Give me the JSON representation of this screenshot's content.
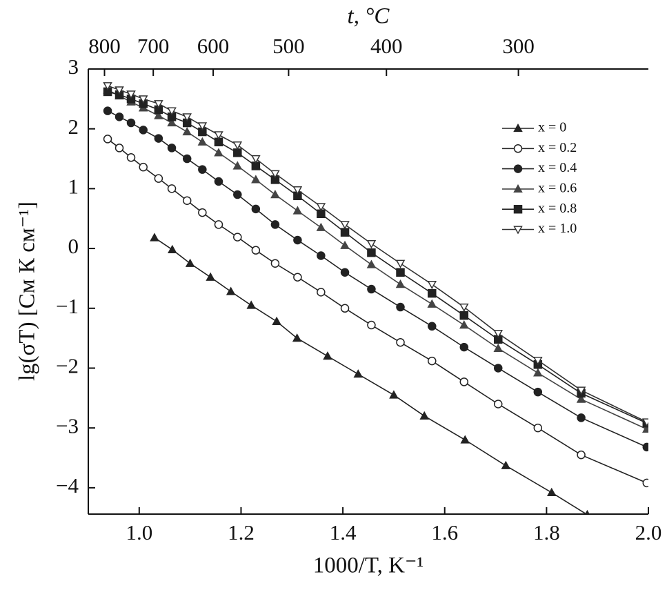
{
  "chart_data": {
    "type": "line",
    "xlabel": "1000/T, K⁻¹",
    "ylabel": "lg(σT) [См К см⁻¹]",
    "x2label": "t, °C",
    "xlim": [
      0.9,
      2.0
    ],
    "xticks": [
      {
        "value": 1.0,
        "label": "1.0"
      },
      1.2,
      1.4,
      1.6,
      1.8,
      {
        "value": 2.0,
        "label": "2.0"
      }
    ],
    "ylim": [
      -4.44,
      3
    ],
    "yticks": [
      3,
      2,
      1,
      0,
      {
        "value": -1,
        "label": "−1"
      },
      {
        "value": -2,
        "label": "−2"
      },
      {
        "value": -3,
        "label": "−3"
      },
      {
        "value": -4,
        "label": "−4"
      }
    ],
    "x2ticks": [
      800,
      700,
      600,
      500,
      400,
      300
    ],
    "grid": false,
    "legend": "upper right",
    "x": [
      0.938,
      0.961,
      0.984,
      1.008,
      1.038,
      1.064,
      1.094,
      1.124,
      1.156,
      1.193,
      1.229,
      1.267,
      1.311,
      1.357,
      1.404,
      1.456,
      1.513,
      1.575,
      1.638,
      1.705,
      1.783,
      1.868,
      1.997
    ],
    "series": [
      {
        "name": "x = 0",
        "color": "#222",
        "marker": "triangle",
        "x": [
          1.03,
          1.065,
          1.1,
          1.14,
          1.18,
          1.22,
          1.27,
          1.31,
          1.37,
          1.43,
          1.5,
          1.56,
          1.64,
          1.72,
          1.81,
          1.88
        ],
        "values": [
          0.18,
          -0.02,
          -0.25,
          -0.48,
          -0.72,
          -0.95,
          -1.22,
          -1.5,
          -1.8,
          -2.1,
          -2.45,
          -2.8,
          -3.2,
          -3.63,
          -4.08,
          -4.45
        ]
      },
      {
        "name": "x = 0.2",
        "color": "#222",
        "marker": "circle-open",
        "values": [
          1.83,
          1.68,
          1.52,
          1.36,
          1.17,
          1.0,
          0.8,
          0.6,
          0.4,
          0.19,
          -0.03,
          -0.25,
          -0.48,
          -0.73,
          -1.0,
          -1.28,
          -1.57,
          -1.88,
          -2.23,
          -2.6,
          -3.0,
          -3.45,
          -3.92
        ]
      },
      {
        "name": "x = 0.4",
        "color": "#222",
        "marker": "circle",
        "values": [
          2.3,
          2.2,
          2.1,
          1.98,
          1.84,
          1.68,
          1.5,
          1.32,
          1.12,
          0.9,
          0.66,
          0.4,
          0.14,
          -0.12,
          -0.4,
          -0.68,
          -0.98,
          -1.3,
          -1.65,
          -2.0,
          -2.4,
          -2.83,
          -3.32
        ]
      },
      {
        "name": "x = 0.6",
        "color": "#444",
        "marker": "triangle",
        "values": [
          2.65,
          2.55,
          2.45,
          2.35,
          2.22,
          2.1,
          1.95,
          1.78,
          1.6,
          1.38,
          1.15,
          0.9,
          0.63,
          0.35,
          0.05,
          -0.27,
          -0.6,
          -0.93,
          -1.28,
          -1.67,
          -2.08,
          -2.52,
          -3.02
        ]
      },
      {
        "name": "x = 0.8",
        "color": "#222",
        "marker": "square",
        "values": [
          2.62,
          2.57,
          2.5,
          2.42,
          2.32,
          2.2,
          2.1,
          1.95,
          1.78,
          1.6,
          1.38,
          1.15,
          0.88,
          0.58,
          0.27,
          -0.07,
          -0.4,
          -0.75,
          -1.12,
          -1.52,
          -1.94,
          -2.42,
          -2.92
        ]
      },
      {
        "name": "x = 1.0",
        "color": "#333",
        "marker": "triangle-down-open",
        "values": [
          2.72,
          2.65,
          2.58,
          2.5,
          2.42,
          2.3,
          2.2,
          2.05,
          1.9,
          1.73,
          1.5,
          1.25,
          0.98,
          0.7,
          0.4,
          0.08,
          -0.25,
          -0.6,
          -0.98,
          -1.42,
          -1.87,
          -2.37,
          -2.9
        ]
      }
    ]
  }
}
